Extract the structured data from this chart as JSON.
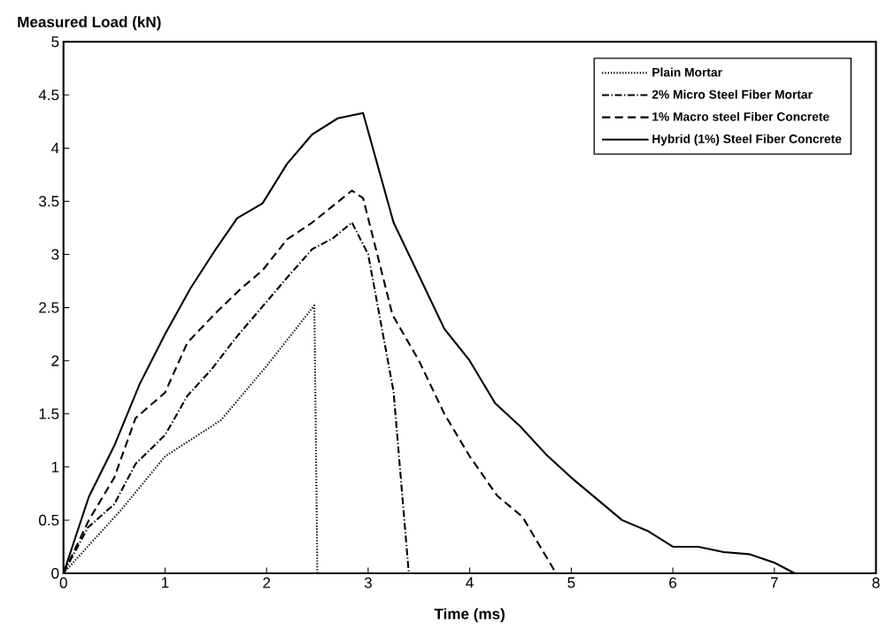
{
  "chart_data": {
    "type": "line",
    "xlabel": "Time (ms)",
    "ylabel": "Measured Load (kN)",
    "xlim": [
      0,
      8
    ],
    "ylim": [
      0,
      5
    ],
    "xticks": [
      0,
      1,
      2,
      3,
      4,
      5,
      6,
      7,
      8
    ],
    "yticks": [
      0,
      0.5,
      1,
      1.5,
      2,
      2.5,
      3,
      3.5,
      4,
      4.5,
      5
    ],
    "legend": "top right",
    "series": [
      {
        "name": "Plain Mortar",
        "color": "#000000",
        "line_style": "dotted",
        "x": [
          0,
          0.58,
          1,
          1.55,
          2,
          2.47,
          2.5
        ],
        "values": [
          0,
          0.61,
          1.1,
          1.44,
          1.95,
          2.52,
          0
        ]
      },
      {
        "name": "2% Micro Steel Fiber Mortar",
        "color": "#000000",
        "line_style": "dashdot",
        "x": [
          0,
          0.24,
          0.5,
          0.71,
          1,
          1.22,
          1.45,
          1.71,
          1.96,
          2.2,
          2.45,
          2.65,
          2.84,
          3,
          3.25,
          3.4
        ],
        "values": [
          0,
          0.43,
          0.65,
          1.03,
          1.3,
          1.67,
          1.91,
          2.23,
          2.51,
          2.78,
          3.05,
          3.15,
          3.3,
          3.0,
          1.71,
          0
        ]
      },
      {
        "name": "1% Macro steel Fiber Concrete",
        "color": "#000000",
        "line_style": "dashed",
        "x": [
          0,
          0.25,
          0.5,
          0.71,
          1,
          1.22,
          1.5,
          1.75,
          1.96,
          2.2,
          2.45,
          2.84,
          2.95,
          3.24,
          3.5,
          3.75,
          4,
          4.27,
          4.52,
          4.85
        ],
        "values": [
          0,
          0.5,
          0.9,
          1.46,
          1.7,
          2.17,
          2.45,
          2.68,
          2.85,
          3.14,
          3.3,
          3.6,
          3.53,
          2.43,
          2.0,
          1.5,
          1.1,
          0.73,
          0.53,
          0
        ]
      },
      {
        "name": "Hybrid (1%) Steel Fiber Concrete",
        "color": "#000000",
        "line_style": "solid",
        "x": [
          0,
          0.25,
          0.5,
          0.75,
          1,
          1.25,
          1.5,
          1.71,
          1.96,
          2.2,
          2.45,
          2.7,
          2.95,
          3.25,
          3.5,
          3.75,
          4,
          4.25,
          4.5,
          4.75,
          5,
          5.25,
          5.5,
          5.75,
          6,
          6.25,
          6.5,
          6.75,
          7,
          7.2
        ],
        "values": [
          0,
          0.72,
          1.2,
          1.78,
          2.25,
          2.68,
          3.05,
          3.34,
          3.48,
          3.85,
          4.13,
          4.28,
          4.33,
          3.3,
          2.8,
          2.3,
          2.0,
          1.6,
          1.38,
          1.12,
          0.9,
          0.7,
          0.5,
          0.4,
          0.25,
          0.25,
          0.2,
          0.18,
          0.1,
          0
        ]
      }
    ]
  }
}
